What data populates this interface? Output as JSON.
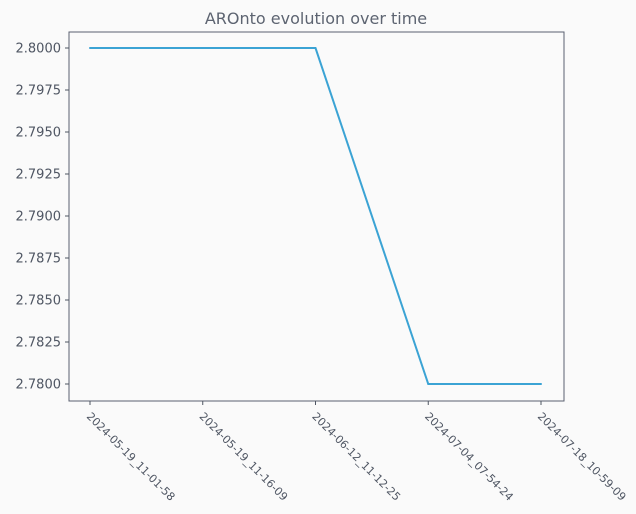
{
  "chart_data": {
    "type": "line",
    "title": "AROnto evolution over time",
    "xlabel": "",
    "ylabel": "",
    "x": [
      "2024-05-19_11-01-58",
      "2024-05-19_11-16-09",
      "2024-06-12_11-12-25",
      "2024-07-04_07-54-24",
      "2024-07-18_10-59-09"
    ],
    "series": [
      {
        "values": [
          2.8,
          2.8,
          2.8,
          2.78,
          2.78
        ],
        "color": "#3ba3d4"
      }
    ],
    "ylim": [
      2.779,
      2.801
    ],
    "yticks": [
      "2.8000",
      "2.7975",
      "2.7950",
      "2.7925",
      "2.7900",
      "2.7875",
      "2.7850",
      "2.7825",
      "2.7800"
    ],
    "grid": false,
    "legend": "none"
  }
}
